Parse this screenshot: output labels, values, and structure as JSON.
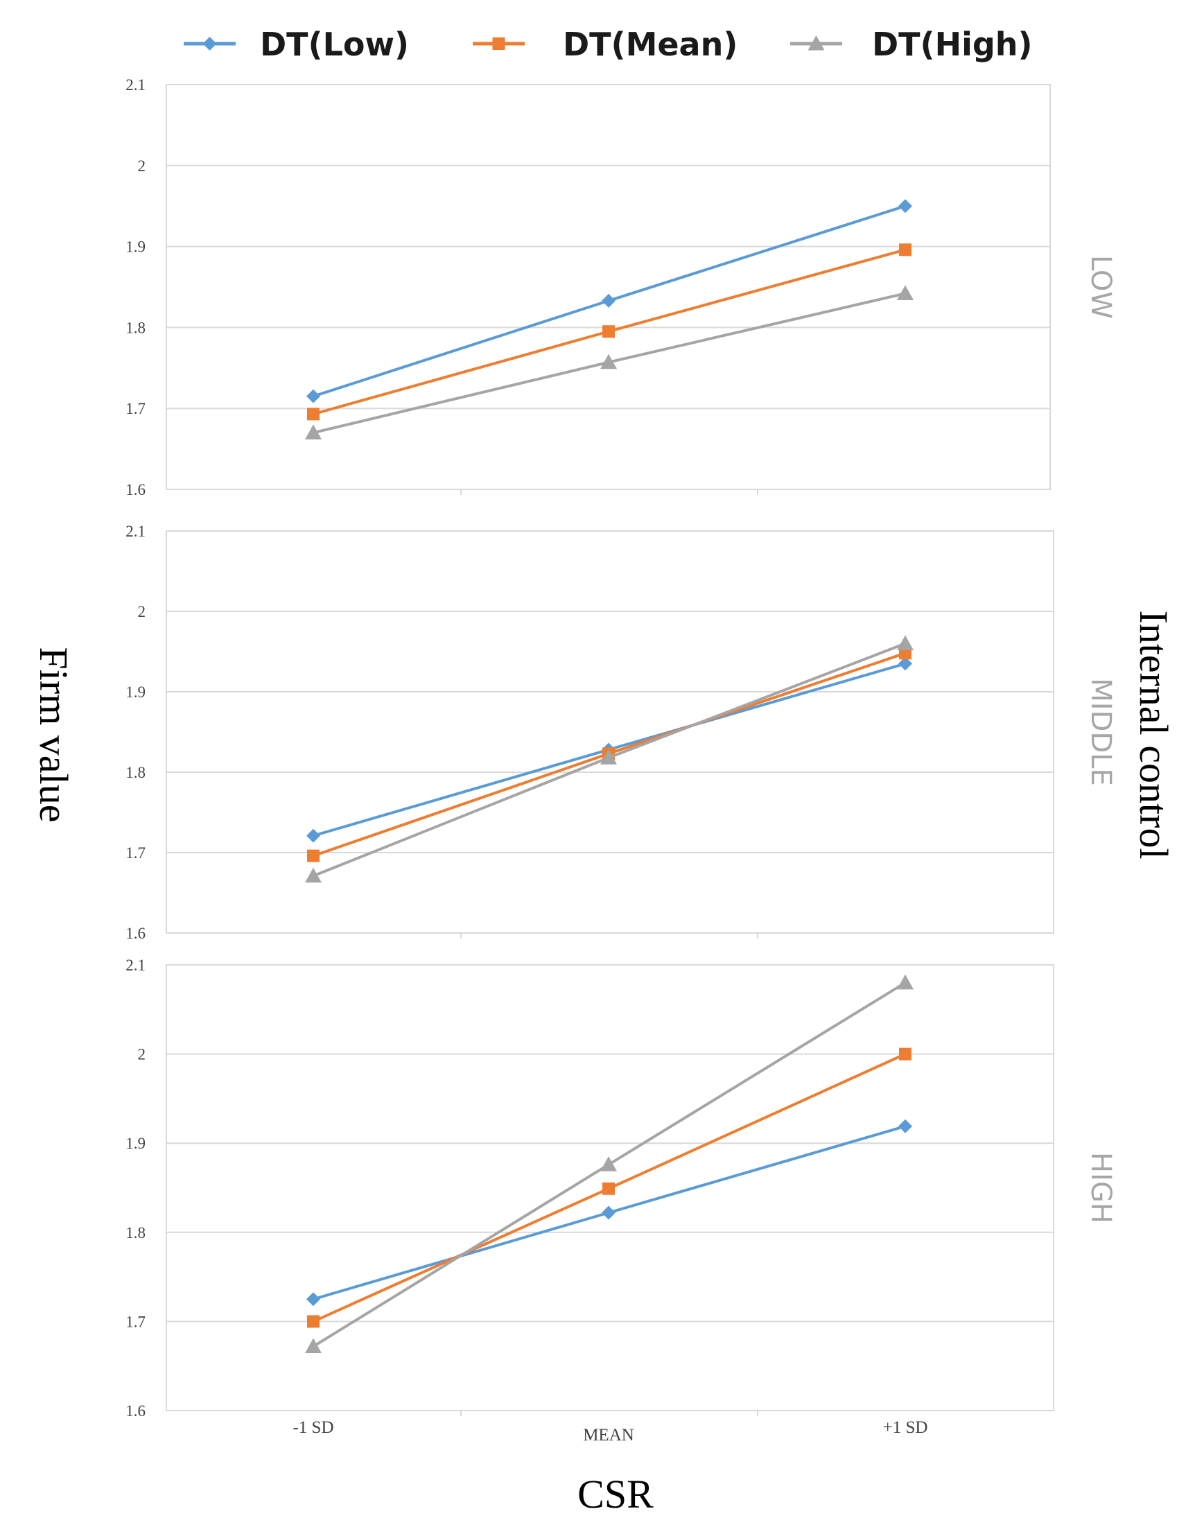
{
  "chart_data": {
    "type": "line",
    "ylabel": "Firm value",
    "xlabel": "CSR",
    "right_label": "Internal control",
    "categories": [
      "-1 SD",
      "MEAN",
      "+1 SD"
    ],
    "yticks": [
      "1.6",
      "1.7",
      "1.8",
      "1.9",
      "2",
      "2.1"
    ],
    "ylim": [
      1.6,
      2.1
    ],
    "legend": [
      {
        "name": "DT(Low)",
        "color": "#5b9bd5",
        "marker": "diamond"
      },
      {
        "name": "DT(Mean)",
        "color": "#ed7d31",
        "marker": "square"
      },
      {
        "name": "DT(High)",
        "color": "#a5a5a5",
        "marker": "triangle"
      }
    ],
    "panels": [
      {
        "label": "LOW",
        "series": [
          {
            "name": "DT(Low)",
            "values": [
              1.715,
              1.833,
              1.95
            ]
          },
          {
            "name": "DT(Mean)",
            "values": [
              1.693,
              1.795,
              1.896
            ]
          },
          {
            "name": "DT(High)",
            "values": [
              1.67,
              1.757,
              1.842
            ]
          }
        ]
      },
      {
        "label": "MIDDLE",
        "series": [
          {
            "name": "DT(Low)",
            "values": [
              1.721,
              1.828,
              1.935
            ]
          },
          {
            "name": "DT(Mean)",
            "values": [
              1.696,
              1.823,
              1.948
            ]
          },
          {
            "name": "DT(High)",
            "values": [
              1.671,
              1.818,
              1.96
            ]
          }
        ]
      },
      {
        "label": "HIGH",
        "series": [
          {
            "name": "DT(Low)",
            "values": [
              1.725,
              1.822,
              1.919
            ]
          },
          {
            "name": "DT(Mean)",
            "values": [
              1.7,
              1.849,
              2.0
            ]
          },
          {
            "name": "DT(High)",
            "values": [
              1.672,
              1.876,
              2.08
            ]
          }
        ]
      }
    ]
  }
}
